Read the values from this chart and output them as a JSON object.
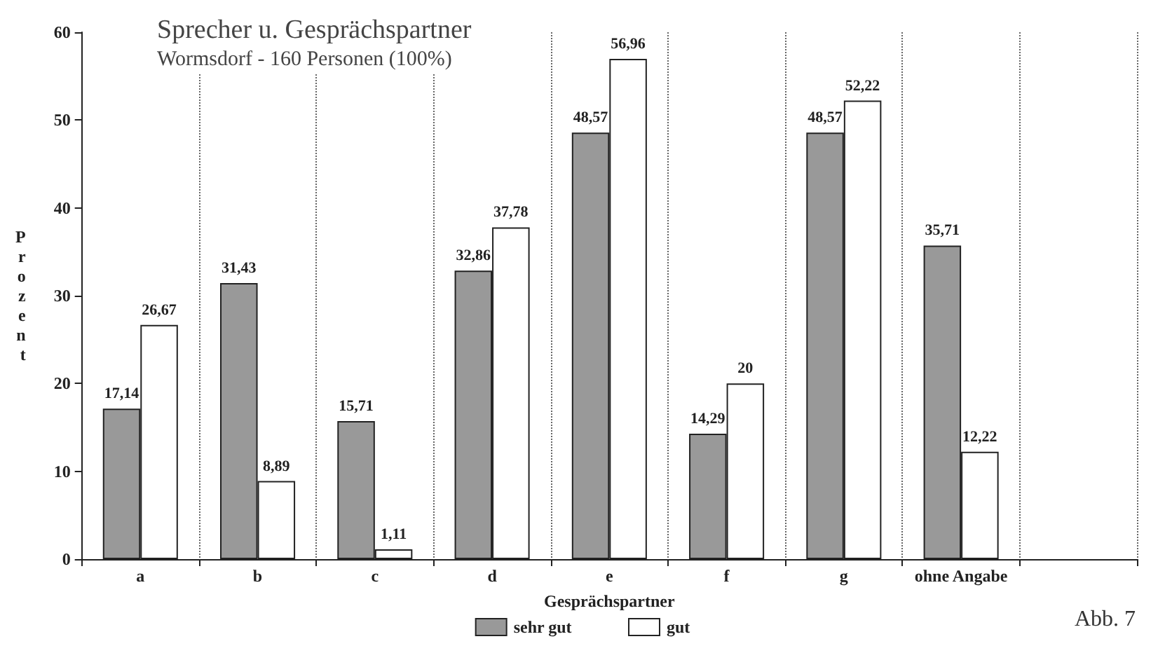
{
  "chart_data": {
    "type": "bar",
    "title": "Sprecher u. Gesprächspartner",
    "subtitle": "Wormsdorf - 160 Personen (100%)",
    "xlabel": "Gesprächspartner",
    "ylabel": "Prozent",
    "categories": [
      "a",
      "b",
      "c",
      "d",
      "e",
      "f",
      "g",
      "ohne Angabe",
      null
    ],
    "series": [
      {
        "name": "sehr gut",
        "color": "#999999",
        "values": [
          17.14,
          31.43,
          15.71,
          32.86,
          48.57,
          14.29,
          48.57,
          35.71,
          null
        ],
        "value_labels": [
          "17,14",
          "31,43",
          "15,71",
          "32,86",
          "48,57",
          "14,29",
          "48,57",
          "35,71",
          null
        ]
      },
      {
        "name": "gut",
        "color": "#ffffff",
        "values": [
          26.67,
          8.89,
          1.11,
          37.78,
          56.96,
          20,
          52.22,
          12.22,
          null
        ],
        "value_labels": [
          "26,67",
          "8,89",
          "1,11",
          "37,78",
          "56,96",
          "20",
          "52,22",
          "12,22",
          null
        ]
      }
    ],
    "ylim": [
      0,
      60
    ],
    "yticks": [
      0,
      10,
      20,
      30,
      40,
      50,
      60
    ],
    "grid": "x",
    "legend": "bottom",
    "annotations": [
      "Abb. 7"
    ]
  }
}
